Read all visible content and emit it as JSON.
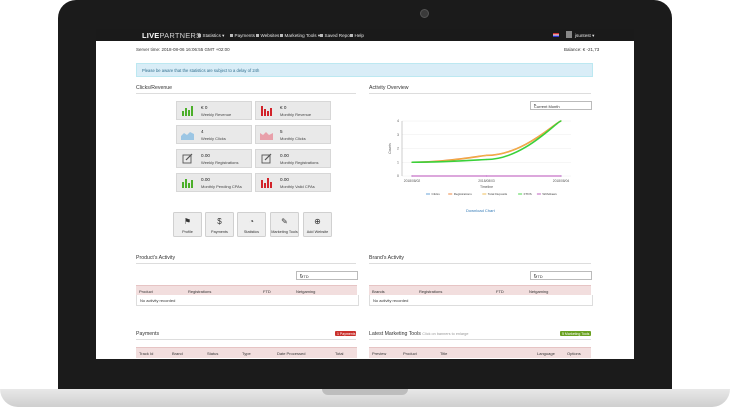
{
  "brand": {
    "name_bold": "LIVE",
    "name_thin": "PARTNERS"
  },
  "nav": [
    {
      "label": "Statistics ▾",
      "icon": "bar-chart-icon"
    },
    {
      "label": "Payments ▾",
      "icon": "dollar-icon"
    },
    {
      "label": "Websites",
      "icon": "globe-icon"
    },
    {
      "label": "Marketing Tools ▾",
      "icon": "tools-icon"
    },
    {
      "label": "Saved Report",
      "icon": "save-icon"
    },
    {
      "label": "Help",
      "icon": "help-icon"
    }
  ],
  "user": {
    "name": "jsuntest ▾"
  },
  "server_time": "Server time: 2018-08-06 16:06:55 GMT +02:00",
  "balance": "Balance: € -21,73",
  "alert": "Please be aware that the statistics are subject to a delay of 24h",
  "clicks_revenue": {
    "title": "Clicks/Revenue",
    "tiles": [
      {
        "value": "€ 0",
        "label": "Weekly Revenue",
        "icon": "green-bars-icon",
        "color": "#4caf2a"
      },
      {
        "value": "€ 0",
        "label": "Monthly Revenue",
        "icon": "red-bars-icon",
        "color": "#d2232a"
      },
      {
        "value": "4",
        "label": "Weekly Clicks",
        "icon": "blue-area-icon",
        "color": "#7fb5d8"
      },
      {
        "value": "5",
        "label": "Monthly Clicks",
        "icon": "red-area-icon",
        "color": "#e07b8a"
      },
      {
        "value": "0.00",
        "label": "Weekly Registrations",
        "icon": "edit-icon",
        "color": "#555555"
      },
      {
        "value": "0.00",
        "label": "Monthly Registrations",
        "icon": "edit-icon",
        "color": "#555555"
      },
      {
        "value": "0.00",
        "label": "Monthly Pending CPAs",
        "icon": "green-bars-icon",
        "color": "#4caf2a"
      },
      {
        "value": "0.00",
        "label": "Monthly Valid CPAs",
        "icon": "red-bars-icon",
        "color": "#d2232a"
      }
    ]
  },
  "quick_buttons": [
    {
      "label": "Profile",
      "icon": "lock-icon",
      "glyph": "🔒"
    },
    {
      "label": "Payments",
      "icon": "dollar-icon",
      "glyph": "$"
    },
    {
      "label": "Statistics",
      "icon": "pie-chart-icon",
      "glyph": "◔"
    },
    {
      "label": "Marketing Tools",
      "icon": "edit-icon",
      "glyph": "✎"
    },
    {
      "label": "Add Website",
      "icon": "add-website-icon",
      "glyph": "⊕"
    }
  ],
  "activity": {
    "title": "Activity Overview",
    "period": "Current Month",
    "y_label": "Counts",
    "x_label": "Timeline",
    "download": "Download Chart"
  },
  "chart_data": {
    "type": "line",
    "x": [
      "2018/08/02",
      "2018/08/03",
      "2018/08/04"
    ],
    "xlabel": "Timeline",
    "ylabel": "Counts",
    "ylim": [
      0,
      4
    ],
    "y_ticks": [
      "4",
      "3",
      "2",
      "1",
      "0"
    ],
    "legend_placement": "bottom",
    "series": [
      {
        "name": "Clicks",
        "color": "#5b9bd5",
        "values": [
          0,
          0,
          0
        ]
      },
      {
        "name": "Registrations",
        "color": "#ed7d31",
        "values": [
          1,
          1.5,
          4
        ]
      },
      {
        "name": "Total Deposits",
        "color": "#f0b849",
        "values": [
          1,
          1.5,
          4
        ]
      },
      {
        "name": "FTDS",
        "color": "#3ad13a",
        "values": [
          1,
          1.2,
          4
        ]
      },
      {
        "name": "Withdraws",
        "color": "#b84fb8",
        "values": [
          0,
          0,
          0
        ]
      }
    ]
  },
  "product_activity": {
    "title": "Product's Activity",
    "filter": "MTD",
    "columns": [
      "Product",
      "Registrations",
      "FTD",
      "Netgaming"
    ],
    "empty": "No activity recorded"
  },
  "brand_activity": {
    "title": "Brand's Activity",
    "filter": "MTD",
    "columns": [
      "Brands",
      "Registrations",
      "FTD",
      "Netgaming"
    ],
    "empty": "No activity recorded"
  },
  "payments": {
    "title": "Payments",
    "badge": "1 Payments",
    "badge_color": "#c9302c",
    "columns": [
      "Track Id",
      "Brand",
      "Status",
      "Type",
      "Date Processed",
      "Total"
    ]
  },
  "marketing": {
    "title": "Latest Marketing Tools",
    "hint": "Click on banners to enlarge",
    "badge": "5 Marketing Tools",
    "badge_color": "#6aa121",
    "columns": [
      "Preview",
      "Product",
      "Title",
      "Language",
      "Options"
    ]
  }
}
